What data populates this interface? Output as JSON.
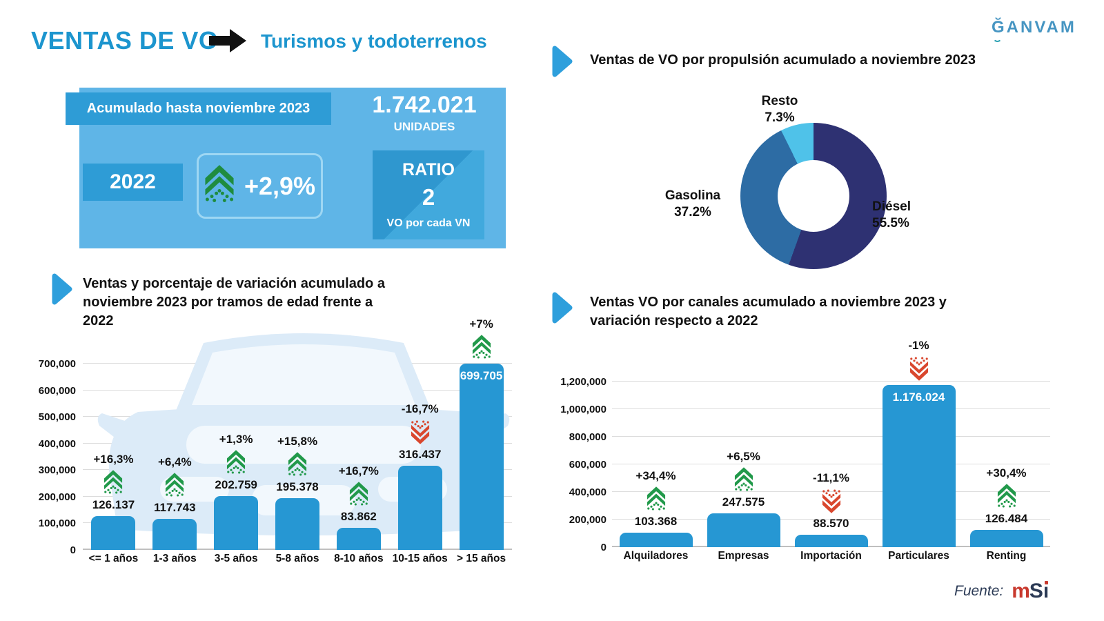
{
  "header": {
    "title": "VENTAS DE VO",
    "subtitle": "Turismos y todoterrenos",
    "logo_text": "ĞANVAM"
  },
  "summary": {
    "period_label": "Acumulado hasta noviembre 2023",
    "total_value": "1.742.021",
    "total_unit": "UNIDADES",
    "compare_year": "2022",
    "variation": "+2,9%",
    "ratio_title": "RATIO",
    "ratio_value": "2",
    "ratio_caption": "VO por cada VN"
  },
  "footer": {
    "source_label": "Fuente:",
    "source_logo_m": "m",
    "source_logo_s": "S",
    "source_logo_i": "ı"
  },
  "colors": {
    "accent_blue": "#1c95ce",
    "panel_blue": "#5fb5e7",
    "box_blue": "#2e9cd6",
    "bar_blue": "#2697d3",
    "green_arrow": "#21994a",
    "red_arrow": "#d9472e"
  },
  "chart_data": [
    {
      "id": "propulsion",
      "type": "pie",
      "donut": true,
      "title": "Ventas de VO por propulsión acumulado a noviembre 2023",
      "labels": [
        "Diésel",
        "Gasolina",
        "Resto"
      ],
      "values": [
        55.5,
        37.2,
        7.3
      ],
      "display_values": [
        "55.5%",
        "37.2%",
        "7.3%"
      ],
      "colors": [
        "#2e3172",
        "#2d6ca4",
        "#4fc2e9"
      ],
      "legend_position": "around"
    },
    {
      "id": "age",
      "type": "bar",
      "title": "Ventas y porcentaje de variación acumulado a noviembre 2023 por tramos de edad frente a 2022",
      "categories": [
        "<= 1 años",
        "1-3 años",
        "3-5 años",
        "5-8 años",
        "8-10 años",
        "10-15 años",
        "> 15 años"
      ],
      "values": [
        126137,
        117743,
        202759,
        195378,
        83862,
        316437,
        699705
      ],
      "value_labels": [
        "126.137",
        "117.743",
        "202.759",
        "195.378",
        "83.862",
        "316.437",
        "699.705"
      ],
      "variations": [
        "+16,3%",
        "+6,4%",
        "+1,3%",
        "+15,8%",
        "+16,7%",
        "-16,7%",
        "+7%"
      ],
      "directions": [
        "up",
        "up",
        "up",
        "up",
        "up",
        "down",
        "up"
      ],
      "value_inside": [
        false,
        false,
        false,
        false,
        false,
        false,
        true
      ],
      "ylim": [
        0,
        700000
      ],
      "ytick_step": 100000,
      "yticks": [
        "0",
        "100,000",
        "200,000",
        "300,000",
        "400,000",
        "500,000",
        "600,000",
        "700,000"
      ],
      "grid": true,
      "bar_color": "#2697d3"
    },
    {
      "id": "channels",
      "type": "bar",
      "title": "Ventas VO por canales acumulado a noviembre 2023 y variación respecto a 2022",
      "categories": [
        "Alquiladores",
        "Empresas",
        "Importación",
        "Particulares",
        "Renting"
      ],
      "values": [
        103368,
        247575,
        88570,
        1176024,
        126484
      ],
      "value_labels": [
        "103.368",
        "247.575",
        "88.570",
        "1.176.024",
        "126.484"
      ],
      "variations": [
        "+34,4%",
        "+6,5%",
        "-11,1%",
        "-1%",
        "+30,4%"
      ],
      "directions": [
        "up",
        "up",
        "down",
        "down",
        "up"
      ],
      "value_inside": [
        false,
        false,
        false,
        true,
        false
      ],
      "ylim": [
        0,
        1200000
      ],
      "ytick_step": 200000,
      "yticks": [
        "0",
        "200,000",
        "400,000",
        "600,000",
        "800,000",
        "1,000,000",
        "1,200,000"
      ],
      "grid": true,
      "bar_color": "#2697d3"
    }
  ]
}
